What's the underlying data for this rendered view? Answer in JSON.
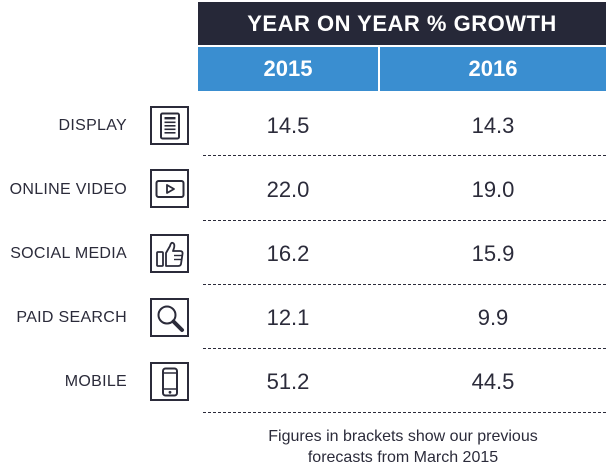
{
  "chart_data": {
    "type": "table",
    "title": "YEAR ON YEAR % GROWTH",
    "columns": [
      "2015",
      "2016"
    ],
    "rows": [
      {
        "label": "DISPLAY",
        "icon": "tablet-document-icon",
        "values": [
          "14.5",
          "14.3"
        ]
      },
      {
        "label": "ONLINE VIDEO",
        "icon": "video-play-icon",
        "values": [
          "22.0",
          "19.0"
        ]
      },
      {
        "label": "SOCIAL MEDIA",
        "icon": "thumbs-up-icon",
        "values": [
          "16.2",
          "15.9"
        ]
      },
      {
        "label": "PAID SEARCH",
        "icon": "magnifier-icon",
        "values": [
          "12.1",
          "9.9"
        ]
      },
      {
        "label": "MOBILE",
        "icon": "smartphone-icon",
        "values": [
          "51.2",
          "44.5"
        ]
      }
    ],
    "footnote_line1": "Figures in brackets show our previous",
    "footnote_line2": "forecasts from March 2015"
  },
  "colors": {
    "header_dark": "#262838",
    "header_blue": "#3a8ed0",
    "text": "#2b2b3a"
  }
}
